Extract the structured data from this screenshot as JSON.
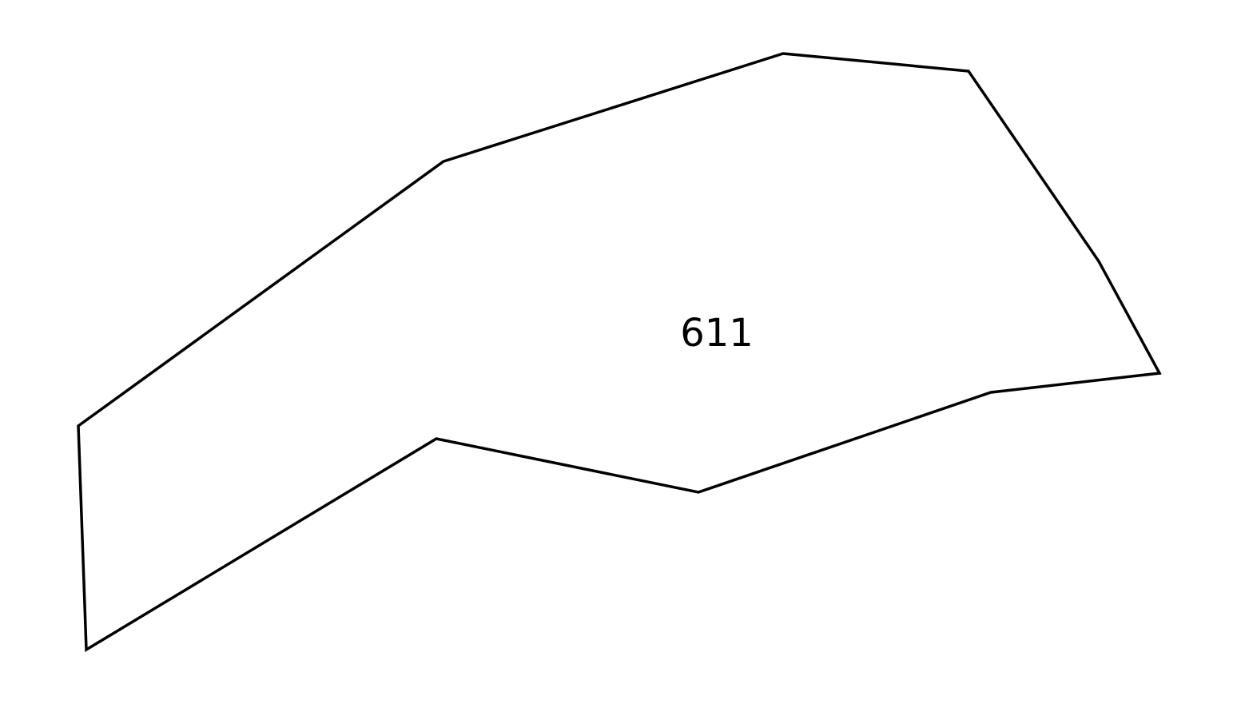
{
  "shape": {
    "label": "611",
    "stroke_color": "#000000",
    "background_color": "#ffffff"
  }
}
